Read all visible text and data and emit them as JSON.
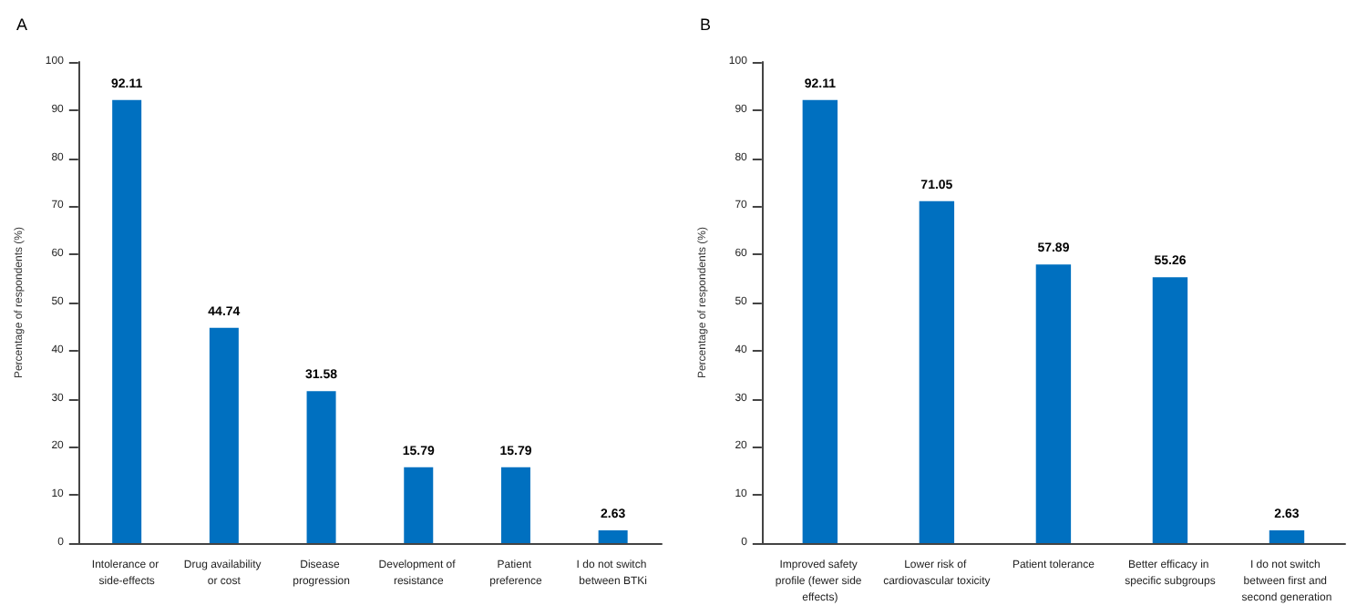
{
  "chart_data": [
    {
      "type": "bar",
      "title": "A",
      "ylabel": "Percentage of respondents (%)",
      "categories": [
        "Intolerance or side-effects",
        "Drug availability or cost",
        "Disease progression",
        "Development of resistance",
        "Patient preference",
        "I do not switch between BTKi"
      ],
      "values": [
        92.11,
        44.74,
        31.58,
        15.79,
        15.79,
        2.63
      ],
      "color": "#0070c0",
      "ylim": [
        0,
        100
      ],
      "yticks": [
        0,
        10,
        20,
        30,
        40,
        50,
        60,
        70,
        80,
        90,
        100
      ],
      "grid": false,
      "data_labels": true
    },
    {
      "type": "bar",
      "title": "B",
      "ylabel": "Percentage of respondents (%)",
      "categories": [
        "Improved safety profile (fewer side effects)",
        "Lower risk of cardiovascular toxicity",
        "Patient tolerance",
        "Better efficacy in specific subgroups",
        "I do not switch between first and second generation"
      ],
      "values": [
        92.11,
        71.05,
        57.89,
        55.26,
        2.63
      ],
      "color": "#0070c0",
      "ylim": [
        0,
        100
      ],
      "yticks": [
        0,
        10,
        20,
        30,
        40,
        50,
        60,
        70,
        80,
        90,
        100
      ],
      "grid": false,
      "data_labels": true
    }
  ]
}
